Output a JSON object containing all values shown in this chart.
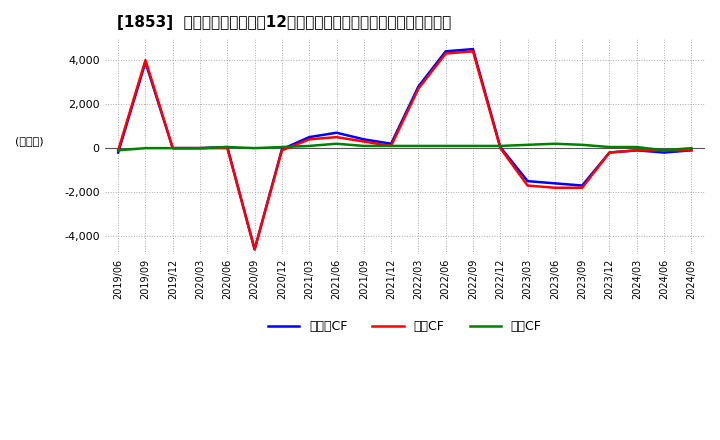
{
  "title": "[1853]  キャッシュフローの12か月移動合計の対前年同期増減額の推移",
  "ylabel": "(百万円)",
  "ylim": [
    -4800,
    5000
  ],
  "yticks": [
    -4000,
    -2000,
    0,
    2000,
    4000
  ],
  "colors": {
    "eigyo": "#ff0000",
    "toshi": "#008000",
    "free": "#0000ff"
  },
  "legend": [
    "営業CF",
    "投資CF",
    "フリーCF"
  ],
  "dates": [
    "2019/06",
    "2019/09",
    "2019/12",
    "2020/03",
    "2020/06",
    "2020/09",
    "2020/12",
    "2021/03",
    "2021/06",
    "2021/09",
    "2021/12",
    "2022/03",
    "2022/06",
    "2022/09",
    "2022/12",
    "2023/03",
    "2023/06",
    "2023/09",
    "2023/12",
    "2024/03",
    "2024/06",
    "2024/09"
  ],
  "eigyo_cf": [
    -100,
    4000,
    0,
    0,
    0,
    -4600,
    -100,
    400,
    500,
    300,
    100,
    2700,
    4300,
    4400,
    0,
    -1700,
    -1800,
    -1800,
    -200,
    -100,
    -100,
    -100
  ],
  "toshi_cf": [
    -100,
    0,
    0,
    0,
    50,
    0,
    50,
    100,
    200,
    100,
    100,
    100,
    100,
    100,
    100,
    150,
    200,
    150,
    50,
    50,
    -100,
    0
  ],
  "free_cf": [
    -200,
    3900,
    0,
    0,
    50,
    -4600,
    -50,
    500,
    700,
    400,
    200,
    2800,
    4400,
    4500,
    50,
    -1500,
    -1600,
    -1700,
    -200,
    -100,
    -200,
    -100
  ],
  "background_color": "#ffffff",
  "plot_bg_color": "#ffffff",
  "grid_color": "#aaaaaa"
}
